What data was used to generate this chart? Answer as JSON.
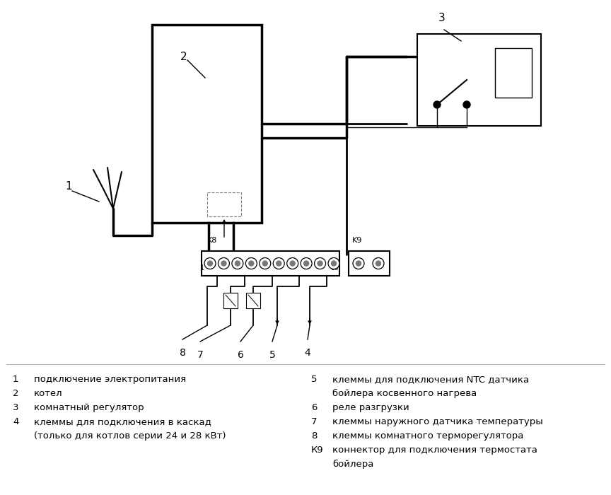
{
  "bg_color": "#ffffff",
  "line_color": "#000000",
  "lw_thick": 2.5,
  "lw_thin": 1.0,
  "legend_items_left": [
    [
      "1",
      "подключение электропитания"
    ],
    [
      "2",
      "котел"
    ],
    [
      "3",
      "комнатный регулятор"
    ],
    [
      "4",
      "клеммы для подключения в каскад"
    ],
    [
      "",
      "(только для котлов серии 24 и 28 кВт)"
    ]
  ],
  "legend_items_right": [
    [
      "5",
      "клеммы для подключения NTC датчика"
    ],
    [
      "",
      "бойлера косвенного нагрева"
    ],
    [
      "6",
      "реле разгрузки"
    ],
    [
      "7",
      "клеммы наружного датчика температуры"
    ],
    [
      "8",
      "клеммы комнатного терморегулятора"
    ],
    [
      "К9",
      "коннектор для подключения термостата"
    ],
    [
      "",
      "бойлера"
    ]
  ]
}
